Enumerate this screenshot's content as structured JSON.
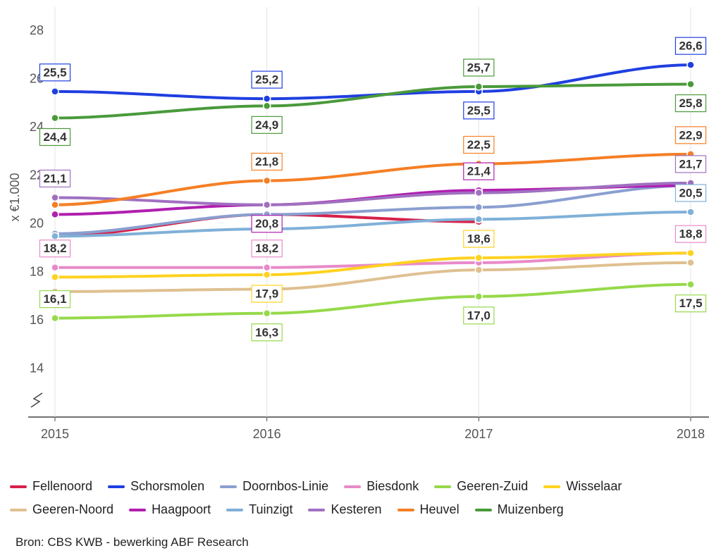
{
  "chart_data": {
    "type": "line",
    "y_label": "x €1.000",
    "source": "Bron: CBS KWB - bewerking ABF Research",
    "categories": [
      "2015",
      "2016",
      "2017",
      "2018"
    ],
    "ylim": [
      12,
      29
    ],
    "yticks": [
      14,
      16,
      18,
      20,
      22,
      24,
      26,
      28
    ],
    "grid": "x",
    "series": [
      {
        "name": "Fellenoord",
        "color": "#d6204a",
        "values": [
          19.5,
          20.4,
          20.1,
          null
        ]
      },
      {
        "name": "Schorsmolen",
        "color": "#1f3fe0",
        "values": [
          25.5,
          25.2,
          25.5,
          26.6
        ],
        "value_labels": [
          "25,5",
          "25,2",
          "25,5",
          "26,6"
        ]
      },
      {
        "name": "Doornbos-Linie",
        "color": "#8a9fd0",
        "values": [
          19.6,
          20.4,
          20.7,
          21.6
        ]
      },
      {
        "name": "Biesdonk",
        "color": "#e88ac8",
        "values": [
          18.2,
          18.2,
          18.4,
          18.8
        ],
        "value_labels": [
          "18,2",
          "18,2",
          null,
          "18,8"
        ]
      },
      {
        "name": "Geeren-Zuid",
        "color": "#96d94a",
        "values": [
          16.1,
          16.3,
          17.0,
          17.5
        ],
        "value_labels": [
          "16,1",
          "16,3",
          "17,0",
          "17,5"
        ]
      },
      {
        "name": "Wisselaar",
        "color": "#ffd21f",
        "values": [
          17.8,
          17.9,
          18.6,
          18.8
        ],
        "value_labels": [
          null,
          "17,9",
          "18,6",
          null
        ]
      },
      {
        "name": "Geeren-Noord",
        "color": "#dfc090",
        "values": [
          17.2,
          17.3,
          18.1,
          18.4
        ]
      },
      {
        "name": "Haagpoort",
        "color": "#b01fb0",
        "values": [
          20.4,
          20.8,
          21.4,
          21.6
        ],
        "value_labels": [
          null,
          "20,8",
          "21,4",
          null
        ]
      },
      {
        "name": "Tuinzigt",
        "color": "#7fb0d8",
        "values": [
          19.5,
          19.8,
          20.2,
          20.5
        ],
        "value_labels": [
          null,
          null,
          null,
          "20,5"
        ]
      },
      {
        "name": "Kesteren",
        "color": "#a070c0",
        "values": [
          21.1,
          20.8,
          21.3,
          21.7
        ],
        "value_labels": [
          "21,1",
          null,
          null,
          "21,7"
        ]
      },
      {
        "name": "Heuvel",
        "color": "#f57f25",
        "values": [
          20.8,
          21.8,
          22.5,
          22.9
        ],
        "value_labels": [
          null,
          "21,8",
          "22,5",
          "22,9"
        ]
      },
      {
        "name": "Muizenberg",
        "color": "#4a9a3a",
        "values": [
          24.4,
          24.9,
          25.7,
          25.8
        ],
        "value_labels": [
          "24,4",
          "24,9",
          "25,7",
          "25,8"
        ]
      }
    ]
  }
}
